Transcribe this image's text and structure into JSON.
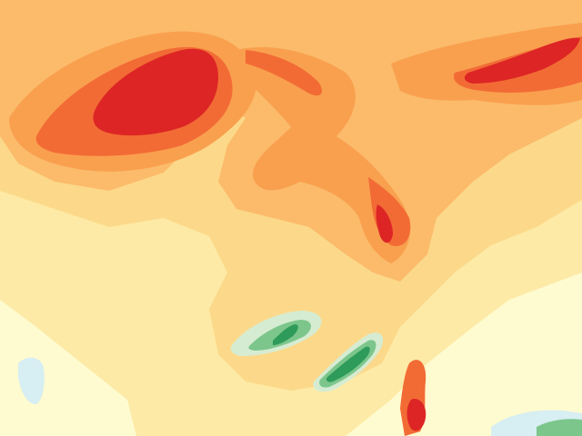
{
  "map": {
    "kind": "filled-contour-field",
    "palette": {
      "very_low": "#fefbd0",
      "low": "#fdeaa6",
      "moderate": "#fcd98a",
      "elevated": "#fbbb6a",
      "high": "#f9a04f",
      "very_high": "#f26b35",
      "extreme": "#dd2525",
      "negative_light": "#d6ecd2",
      "negative_mid": "#7cc68c",
      "negative_strong": "#2e9b5a",
      "cool_blue": "#d7eef2"
    },
    "features": [
      {
        "name": "northwest-maximum-core",
        "level": "extreme"
      },
      {
        "name": "northeast-streak-maxima",
        "level": "extreme"
      },
      {
        "name": "central-maximum",
        "level": "extreme"
      },
      {
        "name": "southern-maximum",
        "level": "extreme"
      },
      {
        "name": "southern-negative-bands",
        "level": "negative_strong"
      }
    ]
  }
}
